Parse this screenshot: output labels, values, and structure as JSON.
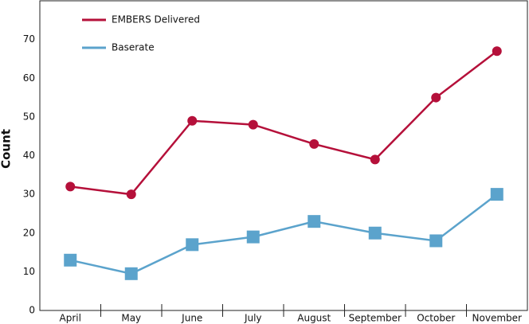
{
  "chart_data": {
    "type": "line",
    "y_label": "Count",
    "categories": [
      "April",
      "May",
      "June",
      "July",
      "August",
      "September",
      "October",
      "November"
    ],
    "series": [
      {
        "name": "EMBERS Delivered",
        "color": "#b5103a",
        "marker": "circle",
        "values": [
          32,
          30,
          49,
          48,
          43,
          39,
          55,
          67
        ]
      },
      {
        "name": "Baserate",
        "color": "#5ba3cc",
        "marker": "square",
        "values": [
          13,
          9.5,
          17,
          19,
          23,
          20,
          18,
          30
        ]
      }
    ],
    "ylim": [
      0,
      80
    ],
    "yticks": [
      0,
      10,
      20,
      30,
      40,
      50,
      60,
      70
    ],
    "grid": false
  }
}
